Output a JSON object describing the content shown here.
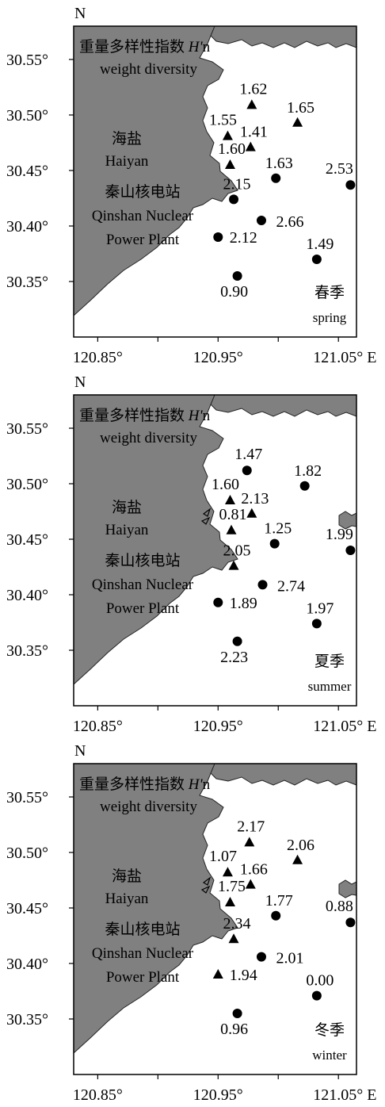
{
  "colors": {
    "land": "#808080",
    "frame": "#000000",
    "background": "#ffffff",
    "marker": "#000000"
  },
  "axes": {
    "north_label": "N",
    "east_suffix": "E",
    "lat_ticks": [
      "30.55°",
      "30.50°",
      "30.45°",
      "30.40°",
      "30.35°"
    ],
    "lon_ticks": [
      "120.85°",
      "120.95°",
      "121.05°"
    ],
    "lat_range": [
      30.3,
      30.58
    ],
    "lon_range": [
      120.83,
      121.065
    ]
  },
  "panel_labels": {
    "heading_cn": "重量多样性指数",
    "heading_h": "H'",
    "heading_n": "n",
    "heading_en": "weight diversity",
    "haiyan_cn": "海盐",
    "haiyan_en": "Haiyan",
    "qinshan_cn": "秦山核电站",
    "qinshan_en_1": "Qinshan Nuclear",
    "qinshan_en_2": "Power Plant"
  },
  "marker_legend": {
    "triangle": "triangle-marker",
    "circle": "circle-marker"
  },
  "chart_data": [
    {
      "type": "scatter",
      "title": "重量多样性指数 H'n weight diversity",
      "season_cn": "春季",
      "season_en": "spring",
      "points": [
        {
          "lon": 120.978,
          "lat": 30.509,
          "marker": "triangle",
          "value": "1.62"
        },
        {
          "lon": 121.016,
          "lat": 30.493,
          "marker": "triangle",
          "value": "1.65"
        },
        {
          "lon": 120.958,
          "lat": 30.481,
          "marker": "triangle",
          "value": "1.55"
        },
        {
          "lon": 120.977,
          "lat": 30.471,
          "marker": "triangle",
          "value": "1.41"
        },
        {
          "lon": 120.96,
          "lat": 30.455,
          "marker": "triangle",
          "value": "1.60"
        },
        {
          "lon": 120.998,
          "lat": 30.443,
          "marker": "circle",
          "value": "1.63"
        },
        {
          "lon": 121.06,
          "lat": 30.437,
          "marker": "circle",
          "value": "2.53"
        },
        {
          "lon": 120.963,
          "lat": 30.424,
          "marker": "circle",
          "value": "2.15"
        },
        {
          "lon": 120.986,
          "lat": 30.405,
          "marker": "circle",
          "value": "2.66"
        },
        {
          "lon": 120.95,
          "lat": 30.39,
          "marker": "circle",
          "value": "2.12"
        },
        {
          "lon": 121.032,
          "lat": 30.37,
          "marker": "circle",
          "value": "1.49"
        },
        {
          "lon": 120.966,
          "lat": 30.355,
          "marker": "circle",
          "value": "0.90"
        }
      ]
    },
    {
      "type": "scatter",
      "title": "重量多样性指数 H'n weight diversity",
      "season_cn": "夏季",
      "season_en": "summer",
      "points": [
        {
          "lon": 120.974,
          "lat": 30.512,
          "marker": "circle",
          "value": "1.47"
        },
        {
          "lon": 121.022,
          "lat": 30.498,
          "marker": "circle",
          "value": "1.82"
        },
        {
          "lon": 120.96,
          "lat": 30.485,
          "marker": "triangle",
          "value": "1.60"
        },
        {
          "lon": 120.978,
          "lat": 30.473,
          "marker": "triangle",
          "value": "2.13"
        },
        {
          "lon": 120.961,
          "lat": 30.458,
          "marker": "triangle",
          "value": "0.81"
        },
        {
          "lon": 120.997,
          "lat": 30.446,
          "marker": "circle",
          "value": "1.25"
        },
        {
          "lon": 121.06,
          "lat": 30.44,
          "marker": "circle",
          "value": "1.99"
        },
        {
          "lon": 120.963,
          "lat": 30.426,
          "marker": "triangle",
          "value": "2.05"
        },
        {
          "lon": 120.987,
          "lat": 30.409,
          "marker": "circle",
          "value": "2.74"
        },
        {
          "lon": 120.95,
          "lat": 30.393,
          "marker": "circle",
          "value": "1.89"
        },
        {
          "lon": 121.032,
          "lat": 30.374,
          "marker": "circle",
          "value": "1.97"
        },
        {
          "lon": 120.966,
          "lat": 30.358,
          "marker": "circle",
          "value": "2.23"
        }
      ]
    },
    {
      "type": "scatter",
      "title": "重量多样性指数 H'n weight diversity",
      "season_cn": "冬季",
      "season_en": "winter",
      "points": [
        {
          "lon": 120.976,
          "lat": 30.509,
          "marker": "triangle",
          "value": "2.17"
        },
        {
          "lon": 121.016,
          "lat": 30.493,
          "marker": "triangle",
          "value": "2.06"
        },
        {
          "lon": 120.958,
          "lat": 30.482,
          "marker": "triangle",
          "value": "1.07"
        },
        {
          "lon": 120.977,
          "lat": 30.471,
          "marker": "triangle",
          "value": "1.66"
        },
        {
          "lon": 120.96,
          "lat": 30.455,
          "marker": "triangle",
          "value": "1.75"
        },
        {
          "lon": 120.998,
          "lat": 30.443,
          "marker": "circle",
          "value": "1.77"
        },
        {
          "lon": 121.06,
          "lat": 30.437,
          "marker": "circle",
          "value": "0.88"
        },
        {
          "lon": 120.963,
          "lat": 30.422,
          "marker": "triangle",
          "value": "2.34"
        },
        {
          "lon": 120.986,
          "lat": 30.406,
          "marker": "circle",
          "value": "2.01"
        },
        {
          "lon": 120.95,
          "lat": 30.39,
          "marker": "triangle",
          "value": "1.94"
        },
        {
          "lon": 121.032,
          "lat": 30.371,
          "marker": "circle",
          "value": "0.00"
        },
        {
          "lon": 120.966,
          "lat": 30.355,
          "marker": "circle",
          "value": "0.96"
        }
      ]
    }
  ]
}
